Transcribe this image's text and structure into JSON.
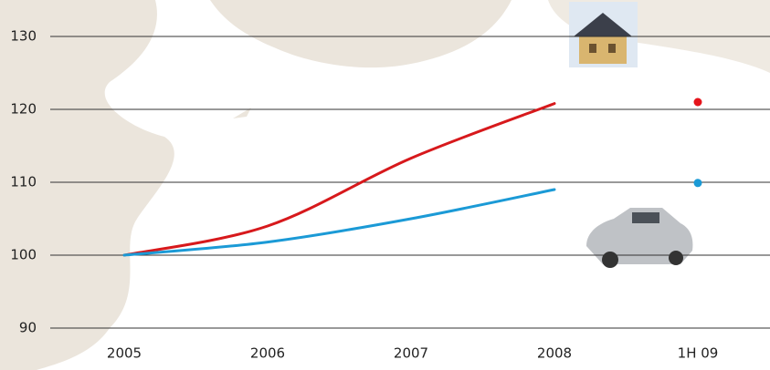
{
  "chart_data": {
    "type": "line",
    "categories": [
      "2005",
      "2006",
      "2007",
      "2008",
      "1H 09"
    ],
    "series": [
      {
        "color": "#d7191c",
        "style": "line",
        "values": [
          100,
          104,
          113.3,
          120.8,
          null
        ]
      },
      {
        "color": "#1b9ad6",
        "style": "line",
        "values": [
          100,
          101.8,
          105,
          109,
          null
        ]
      },
      {
        "color": "#e5141b",
        "style": "point",
        "values": [
          null,
          null,
          null,
          null,
          121
        ]
      },
      {
        "color": "#1b9ad6",
        "style": "point",
        "values": [
          null,
          null,
          null,
          null,
          109.9
        ]
      }
    ],
    "ylim": [
      90,
      130
    ],
    "yticks": [
      90,
      100,
      110,
      120,
      130
    ],
    "grid": true
  }
}
